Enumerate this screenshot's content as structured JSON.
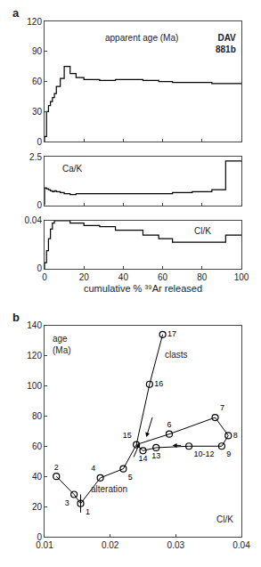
{
  "chart_data": [
    {
      "type": "step",
      "panel": "a",
      "ylabel": "apparent age (Ma)",
      "title": "DAV\n881b",
      "bins": [
        0,
        1,
        2,
        3,
        4,
        5,
        6,
        8,
        10,
        13,
        16,
        20,
        28,
        36,
        50,
        58,
        65,
        75,
        85,
        92,
        100
      ],
      "values": [
        5,
        30,
        36,
        40,
        44,
        48,
        55,
        63,
        75,
        68,
        64,
        62,
        61,
        62,
        61,
        60,
        59,
        59,
        58,
        58
      ],
      "xlim": [
        0,
        100
      ],
      "xticks": [
        0,
        20,
        40,
        60,
        80,
        100
      ],
      "ylim": [
        0,
        120
      ],
      "yticks": [
        0,
        30,
        60,
        90,
        120
      ],
      "tick_labels": "y",
      "grid": false,
      "color": "#000000"
    },
    {
      "type": "step",
      "ylabel": "Ca/K",
      "bins": [
        0,
        1,
        2,
        3,
        4,
        5,
        6,
        8,
        10,
        13,
        16,
        20,
        28,
        36,
        50,
        58,
        65,
        75,
        85,
        92,
        100
      ],
      "values": [
        0.9,
        0.85,
        0.8,
        0.75,
        0.7,
        0.75,
        0.7,
        0.65,
        0.6,
        0.55,
        0.6,
        0.6,
        0.6,
        0.6,
        0.6,
        0.6,
        0.65,
        0.7,
        0.8,
        2.3
      ],
      "xlim": [
        0,
        100
      ],
      "xticks": [
        0,
        20,
        40,
        60,
        80,
        100
      ],
      "ylim": [
        0,
        2.5
      ],
      "yticks": [
        0,
        2.5
      ],
      "tick_labels": "y",
      "grid": false,
      "color": "#000000"
    },
    {
      "type": "step",
      "ylabel": "Cl/K",
      "xlabel": "cumulative % ³⁹Ar released",
      "bins": [
        0,
        1,
        2,
        3,
        4,
        5,
        6,
        8,
        10,
        13,
        16,
        20,
        28,
        36,
        50,
        58,
        65,
        75,
        85,
        92,
        100
      ],
      "values": [
        0.005,
        0.015,
        0.025,
        0.033,
        0.038,
        0.04,
        0.04,
        0.04,
        0.04,
        0.038,
        0.038,
        0.036,
        0.035,
        0.032,
        0.028,
        0.025,
        0.022,
        0.022,
        0.022,
        0.028
      ],
      "xlim": [
        0,
        100
      ],
      "xticks": [
        0,
        20,
        40,
        60,
        80,
        100
      ],
      "ylim": [
        0,
        0.04
      ],
      "yticks": [
        0,
        0.04
      ],
      "grid": false,
      "color": "#000000"
    },
    {
      "type": "scatter",
      "panel": "b",
      "xlabel": "Cl/K",
      "ylabel": "age\n(Ma)",
      "labels": [
        "1",
        "2",
        "3",
        "4",
        "5",
        "6",
        "7",
        "8",
        "9",
        "10-12",
        "13",
        "14",
        "15",
        "16",
        "17"
      ],
      "x": [
        0.0155,
        0.0118,
        0.0145,
        0.0185,
        0.022,
        0.029,
        0.036,
        0.038,
        0.037,
        0.032,
        0.027,
        0.025,
        0.024,
        0.026,
        0.028
      ],
      "y": [
        22,
        40,
        28,
        39,
        45,
        68,
        79,
        67,
        60,
        60,
        59,
        57,
        61,
        101,
        134
      ],
      "errors": [
        6,
        0,
        0,
        0,
        0,
        0,
        0,
        0,
        0,
        0,
        0,
        0,
        0,
        0,
        0
      ],
      "paths": [
        [
          "2",
          "3",
          "1",
          "4",
          "5",
          "15",
          "16",
          "17"
        ],
        [
          "7",
          "8",
          "9",
          "10-12",
          "13",
          "14",
          "15",
          "6",
          "7"
        ]
      ],
      "arrows": [
        {
          "from": [
            0.0235,
            52
          ],
          "to": [
            0.0245,
            62
          ]
        },
        {
          "from": [
            0.031,
            60.5
          ],
          "to": [
            0.0295,
            60.5
          ]
        },
        {
          "from": [
            0.0265,
            80
          ],
          "to": [
            0.0255,
            66
          ]
        }
      ],
      "annotations": [
        {
          "text": "clasts",
          "x": 0.028,
          "y": 116
        },
        {
          "text": "alteration",
          "x": 0.0168,
          "y": 27
        }
      ],
      "xlim": [
        0.01,
        0.04
      ],
      "xticks": [
        0.01,
        0.02,
        0.03,
        0.04
      ],
      "ylim": [
        0,
        140
      ],
      "yticks": [
        0,
        20,
        40,
        60,
        80,
        100,
        120,
        140
      ],
      "marker": "open circle",
      "grid": false,
      "color": "#000000"
    }
  ]
}
